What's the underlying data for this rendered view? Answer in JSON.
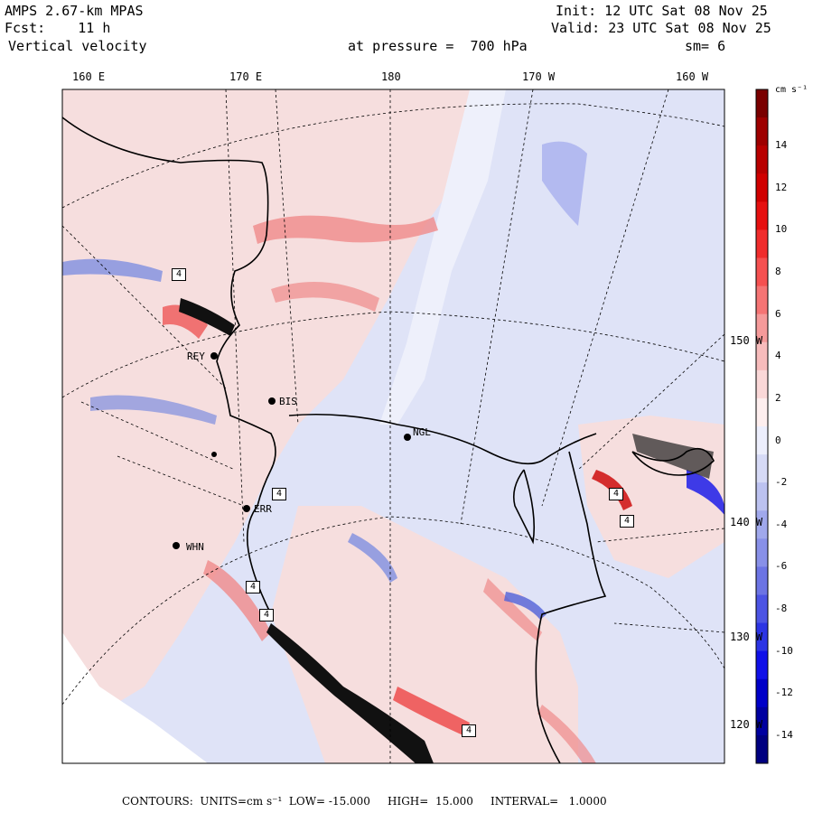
{
  "header": {
    "model": "AMPS 2.67-km MPAS",
    "forecast": "Fcst:    11 h",
    "field": "Vertical velocity",
    "init": "Init: 12 UTC Sat 08 Nov 25",
    "valid": "Valid: 23 UTC Sat 08 Nov 25",
    "level": "at pressure =  700 hPa",
    "smooth": "sm= 6"
  },
  "longitude_labels": [
    "160 E",
    "170 E",
    "180",
    "170 W",
    "160 W"
  ],
  "latitude_labels": [
    "150 W",
    "140 W",
    "130 W",
    "120 W"
  ],
  "stations": [
    "REY",
    "BIS",
    "NGL",
    "ERR",
    "WHN"
  ],
  "extrema_labels": [
    "4",
    "4",
    "4",
    "4",
    "4",
    "4",
    "4"
  ],
  "colorbar": {
    "units": "cm s⁻¹",
    "levels": [
      "14",
      "12",
      "10",
      "8",
      "6",
      "4",
      "2",
      "0",
      "-2",
      "-4",
      "-6",
      "-8",
      "-10",
      "-12",
      "-14"
    ],
    "colors": [
      "#7a0000",
      "#9e0000",
      "#b80000",
      "#d00000",
      "#e61010",
      "#f02c2c",
      "#f55050",
      "#f57474",
      "#f59a9a",
      "#f7bcbc",
      "#fad8d8",
      "#fdeeee",
      "#eceefc",
      "#d6daf6",
      "#bcc2f0",
      "#a0a8ec",
      "#8890e8",
      "#6c74e4",
      "#4c54e4",
      "#2c34e4",
      "#1010e8",
      "#0000c8",
      "#0000a0",
      "#000080"
    ]
  },
  "colors": {
    "positive_light": "#f6dede",
    "negative_light": "#dfe3f7",
    "positive": "#f08a8a",
    "negative": "#7f8ee0"
  },
  "footer": "CONTOURS:  UNITS=cm s⁻¹  LOW= -15.000     HIGH=  15.000     INTERVAL=   1.0000"
}
